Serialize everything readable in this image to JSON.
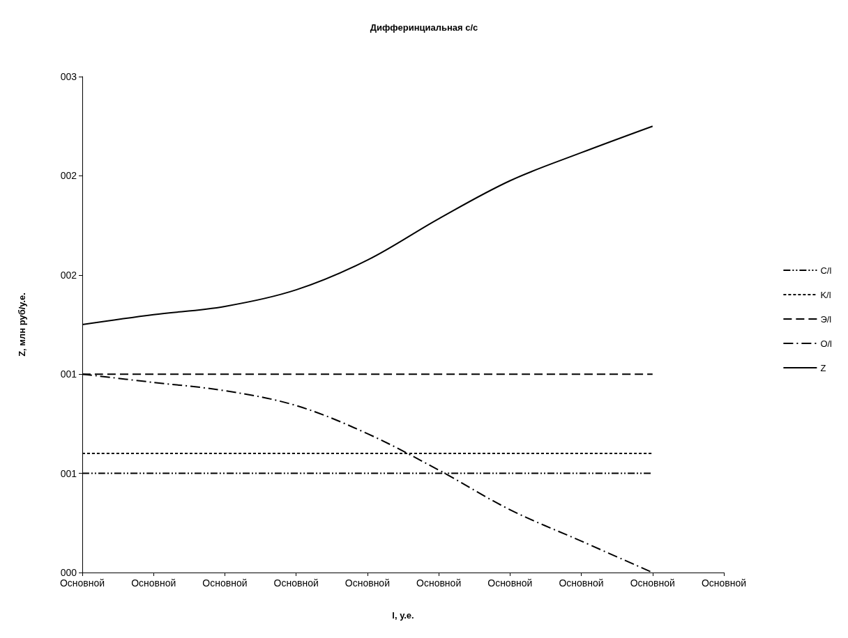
{
  "chart_data": {
    "type": "line",
    "title": "Дифферинциальная с/с",
    "xlabel": "l, у.е.",
    "ylabel": "Z, млн руб/у.е.",
    "categories": [
      "Основной",
      "Основной",
      "Основной",
      "Основной",
      "Основной",
      "Основной",
      "Основной",
      "Основной",
      "Основной",
      "Основной"
    ],
    "ylim": [
      0,
      3
    ],
    "yticks": [
      {
        "value": 0,
        "label": "000"
      },
      {
        "value": 0.6,
        "label": "001"
      },
      {
        "value": 1.2,
        "label": "001"
      },
      {
        "value": 1.8,
        "label": "002"
      },
      {
        "value": 2.4,
        "label": "002"
      },
      {
        "value": 3,
        "label": "003"
      }
    ],
    "series": [
      {
        "name": "C/l",
        "color": "#000000",
        "line_style": "dashdotdot",
        "values": [
          0.6,
          0.6,
          0.6,
          0.6,
          0.6,
          0.6,
          0.6,
          0.6,
          0.6,
          null
        ]
      },
      {
        "name": "K/l",
        "color": "#000000",
        "line_style": "dotted",
        "values": [
          0.72,
          0.72,
          0.72,
          0.72,
          0.72,
          0.72,
          0.72,
          0.72,
          0.72,
          null
        ]
      },
      {
        "name": "Э/l",
        "color": "#000000",
        "line_style": "dashed",
        "values": [
          1.2,
          1.2,
          1.2,
          1.2,
          1.2,
          1.2,
          1.2,
          1.2,
          1.2,
          null
        ]
      },
      {
        "name": "O/l",
        "color": "#000000",
        "line_style": "dashdot",
        "values": [
          1.2,
          1.15,
          1.1,
          1.01,
          0.84,
          0.62,
          0.38,
          0.19,
          0.0,
          null
        ]
      },
      {
        "name": "Z",
        "color": "#000000",
        "line_style": "solid",
        "values": [
          1.5,
          1.56,
          1.61,
          1.71,
          1.89,
          2.14,
          2.37,
          2.54,
          2.7,
          null
        ]
      }
    ],
    "legend": "right",
    "marker": "none",
    "grid": false
  }
}
